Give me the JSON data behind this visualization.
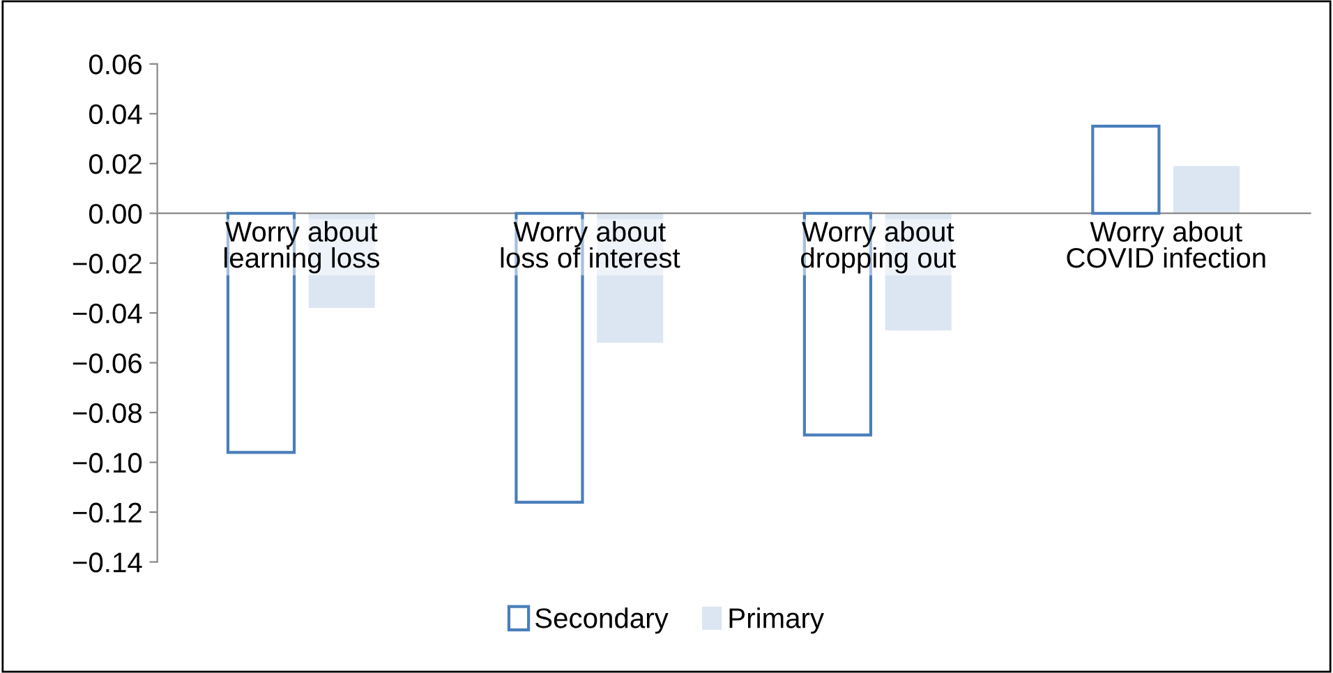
{
  "chart_data": {
    "type": "bar",
    "categories": [
      "Worry about learning loss",
      "Worry about loss of interest",
      "Worry about dropping out",
      "Worry about COVID infection"
    ],
    "series": [
      {
        "name": "Secondary",
        "color": "#4a7ebb",
        "values": [
          -0.096,
          -0.116,
          -0.089,
          0.035
        ]
      },
      {
        "name": "Primary",
        "color": "#dce6f2",
        "values": [
          -0.038,
          -0.052,
          -0.047,
          0.019
        ]
      }
    ],
    "ylim": [
      -0.14,
      0.06
    ],
    "yticks": [
      {
        "value": -0.14,
        "label": "−0.14"
      },
      {
        "value": -0.12,
        "label": "−0.12"
      },
      {
        "value": -0.1,
        "label": "−0.10"
      },
      {
        "value": -0.08,
        "label": "−0.08"
      },
      {
        "value": -0.06,
        "label": "−0.06"
      },
      {
        "value": -0.04,
        "label": "−0.04"
      },
      {
        "value": -0.02,
        "label": "−0.02"
      },
      {
        "value": 0,
        "label": "0.00"
      },
      {
        "value": 0.02,
        "label": "0.02"
      },
      {
        "value": 0.04,
        "label": "0.04"
      },
      {
        "value": 0.06,
        "label": "0.06"
      }
    ],
    "grid": false,
    "legend": "bottom"
  }
}
